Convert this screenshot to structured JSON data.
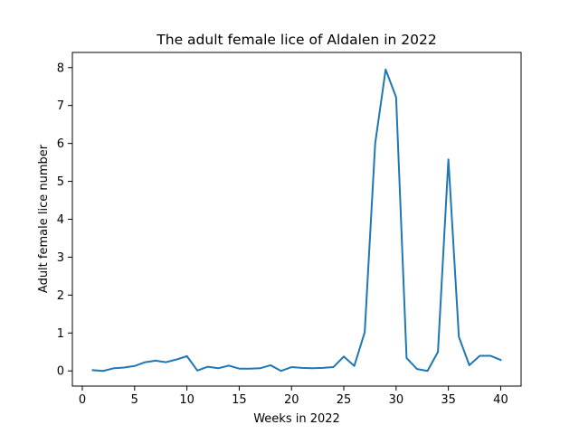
{
  "chart_data": {
    "type": "line",
    "title": "The adult female lice of Aldalen in 2022",
    "xlabel": "Weeks in 2022",
    "ylabel": "Adult female lice number",
    "xlim": [
      -0.95,
      41.95
    ],
    "ylim": [
      -0.4,
      8.4
    ],
    "xticks": [
      0,
      5,
      10,
      15,
      20,
      25,
      30,
      35,
      40
    ],
    "yticks": [
      0,
      1,
      2,
      3,
      4,
      5,
      6,
      7,
      8
    ],
    "grid": false,
    "series_color": "#1f77b4",
    "x": [
      1,
      2,
      3,
      4,
      5,
      6,
      7,
      8,
      9,
      10,
      11,
      12,
      13,
      14,
      15,
      16,
      17,
      18,
      19,
      20,
      21,
      22,
      23,
      24,
      25,
      26,
      27,
      28,
      29,
      30,
      31,
      32,
      33,
      34,
      35,
      36,
      37,
      38,
      39,
      40
    ],
    "y": [
      0.02,
      0.0,
      0.07,
      0.09,
      0.13,
      0.23,
      0.27,
      0.23,
      0.3,
      0.39,
      0.01,
      0.11,
      0.07,
      0.14,
      0.06,
      0.06,
      0.07,
      0.15,
      0.0,
      0.1,
      0.08,
      0.07,
      0.08,
      0.1,
      0.38,
      0.13,
      1.02,
      6.0,
      7.95,
      7.22,
      0.34,
      0.05,
      0.0,
      0.5,
      5.58,
      0.9,
      0.15,
      0.4,
      0.4,
      0.29
    ]
  }
}
